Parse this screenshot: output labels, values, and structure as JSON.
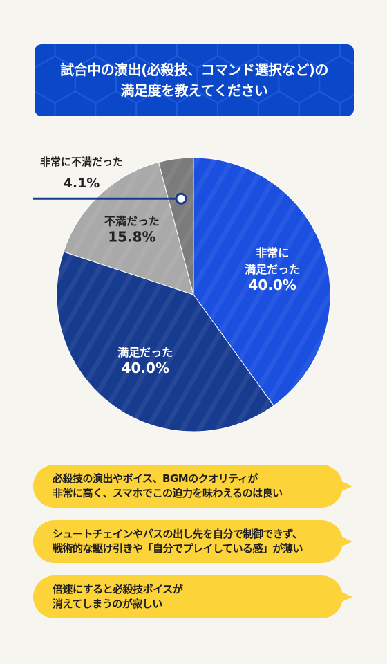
{
  "title": {
    "line1": "試合中の演出(必殺技、コマンド選択など)の",
    "line2": "満足度を教えてください"
  },
  "chart_data": {
    "type": "pie",
    "slices": [
      {
        "label_lines": [
          "非常に",
          "満足だった"
        ],
        "value": 40.0,
        "value_text": "40.0%",
        "color": "#1b4fe0"
      },
      {
        "label_lines": [
          "満足だった"
        ],
        "value": 40.0,
        "value_text": "40.0%",
        "color": "#173b8f"
      },
      {
        "label_lines": [
          "不満だった"
        ],
        "value": 15.8,
        "value_text": "15.8%",
        "color": "#a9a9a9"
      },
      {
        "label_lines": [
          "非常に不満だった"
        ],
        "value": 4.1,
        "value_text": "4.1%",
        "color": "#7b7b7b"
      }
    ]
  },
  "comments": [
    {
      "line1": "必殺技の演出やボイス、BGMのクオリティが",
      "line2": "非常に高く、スマホでこの迫力を味わえるのは良い"
    },
    {
      "line1": "シュートチェインやパスの出し先を自分で制御できず、",
      "line2": "戦術的な駆け引きや「自分でプレイしている感」が薄い"
    },
    {
      "line1": "倍速にすると必殺技ボイスが",
      "line2": "消えてしまうのが寂しい"
    }
  ],
  "colors": {
    "title_bg": "#0b47c9",
    "bubble": "#fdd33a",
    "background": "#f7f5f0"
  }
}
